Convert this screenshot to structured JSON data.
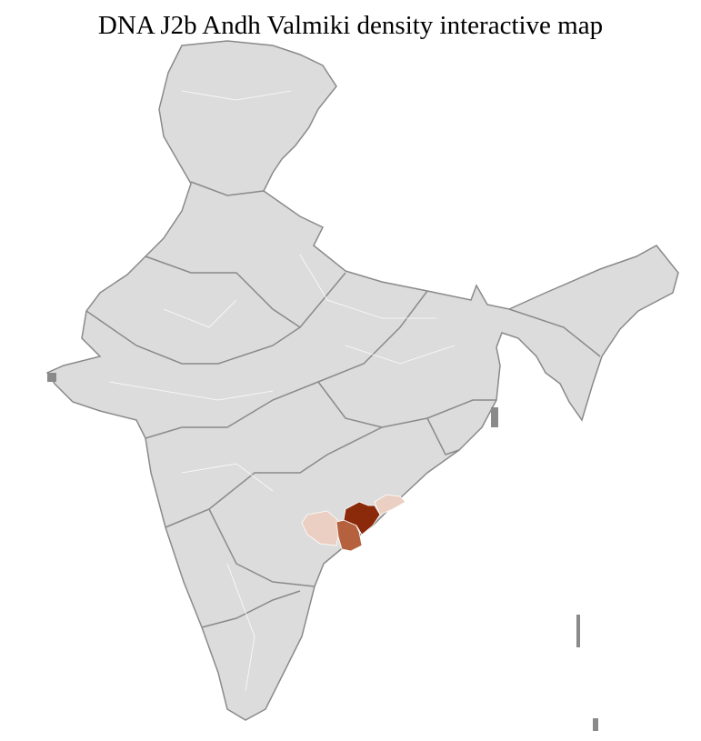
{
  "title": "DNA J2b Andh Valmiki density interactive map",
  "map": {
    "region": "India districts",
    "colors": {
      "background": "#ffffff",
      "land": "#dcdcdc",
      "district_border": "#ffffff",
      "state_border": "#8a8a8a",
      "density_high": "#8b2a0a",
      "density_medium": "#b5613e",
      "density_low": "#ebcfc2"
    },
    "highlighted_districts": [
      {
        "density": "high"
      },
      {
        "density": "medium"
      },
      {
        "density": "low"
      },
      {
        "density": "low"
      }
    ]
  }
}
